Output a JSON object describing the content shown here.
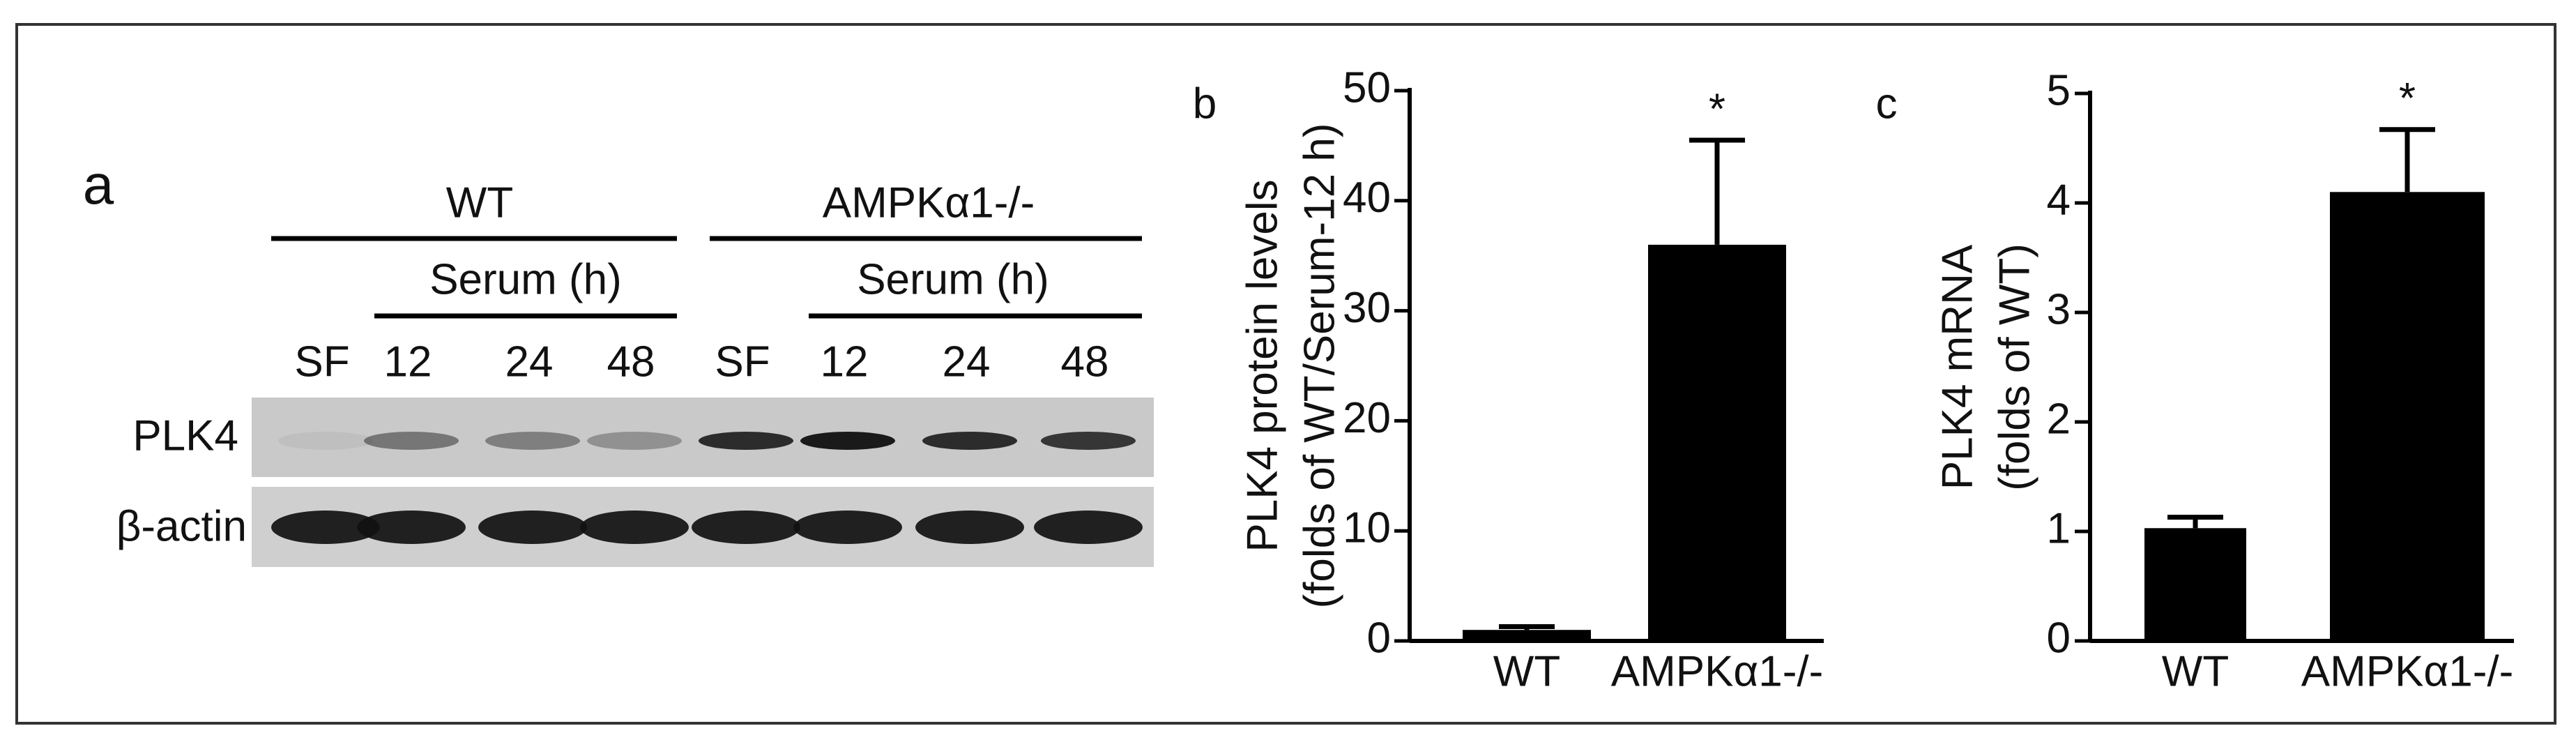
{
  "blot": {
    "label": "a",
    "groups": [
      "WT",
      "AMPKα1-/-"
    ],
    "serum": [
      "Serum (h)",
      "Serum (h)"
    ],
    "lanes": [
      "SF",
      "12",
      "24",
      "48",
      "SF",
      "12",
      "24",
      "48"
    ],
    "rows": [
      "PLK4",
      "β-actin"
    ]
  },
  "chart_data": [
    {
      "type": "bar",
      "label": "b",
      "ylabel": [
        "PLK4 protein levels",
        "(folds of WT/Serum-12 h)"
      ],
      "categories": [
        "WT",
        "AMPKα1-/-"
      ],
      "values": [
        1,
        36
      ],
      "errors": [
        0.3,
        9.5
      ],
      "color": "#000000",
      "annotations": [
        null,
        "*"
      ],
      "ylim": [
        0,
        50
      ],
      "yticks": [
        0,
        10,
        20,
        30,
        40,
        50
      ]
    },
    {
      "type": "bar",
      "label": "c",
      "ylabel": [
        "PLK4 mRNA",
        "(folds of WT)"
      ],
      "categories": [
        "WT",
        "AMPKα1-/-"
      ],
      "values": [
        1.03,
        4.1
      ],
      "errors": [
        0.1,
        0.57
      ],
      "color": "#000000",
      "annotations": [
        null,
        "*"
      ],
      "ylim": [
        0,
        5
      ],
      "yticks": [
        0,
        1,
        2,
        3,
        4,
        5
      ]
    }
  ]
}
